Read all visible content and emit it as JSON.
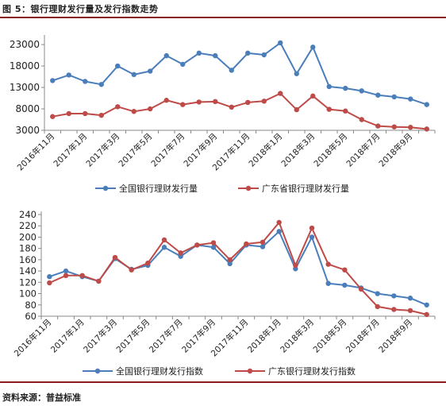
{
  "title": "图 5：银行理财发行量及发行指数走势",
  "source": "资料来源：普益标准",
  "colors": {
    "blue": "#4a7ebb",
    "red": "#be4b48",
    "axis": "#888888",
    "text": "#222222",
    "accent": "#8a1c1c"
  },
  "chart_data": [
    {
      "type": "line",
      "categories": [
        "2016年11月",
        "2016年12月",
        "2017年1月",
        "2017年2月",
        "2017年3月",
        "2017年4月",
        "2017年5月",
        "2017年6月",
        "2017年7月",
        "2017年8月",
        "2017年9月",
        "2017年10月",
        "2017年11月",
        "2017年12月",
        "2018年1月",
        "2018年2月",
        "2018年3月",
        "2018年4月",
        "2018年5月",
        "2018年6月",
        "2018年7月",
        "2018年8月",
        "2018年9月",
        "2018年10月"
      ],
      "tick_labels": [
        "2016年11月",
        "2017年1月",
        "2017年3月",
        "2017年5月",
        "2017年7月",
        "2017年9月",
        "2017年11月",
        "2018年1月",
        "2018年3月",
        "2018年5月",
        "2018年7月",
        "2018年9月"
      ],
      "yticks": [
        3000,
        8000,
        13000,
        18000,
        23000
      ],
      "ylim": [
        3000,
        24500
      ],
      "legend": "bottom",
      "series": [
        {
          "name": "全国银行理财发行量",
          "color": "#4a7ebb",
          "values": [
            14600,
            15900,
            14400,
            13700,
            18000,
            16000,
            16800,
            20400,
            18400,
            21000,
            20400,
            17000,
            21000,
            20600,
            23400,
            16200,
            22400,
            13200,
            12800,
            12200,
            11200,
            10800,
            10300,
            9000
          ]
        },
        {
          "name": "广东省银行理财发行量",
          "color": "#be4b48",
          "values": [
            6200,
            6900,
            6900,
            6500,
            8500,
            7400,
            8000,
            10000,
            9000,
            9600,
            9700,
            8400,
            9500,
            9800,
            11600,
            7800,
            11000,
            7900,
            7500,
            5500,
            4000,
            3800,
            3700,
            3300
          ]
        }
      ]
    },
    {
      "type": "line",
      "categories": [
        "2016年11月",
        "2016年12月",
        "2017年1月",
        "2017年2月",
        "2017年3月",
        "2017年4月",
        "2017年5月",
        "2017年6月",
        "2017年7月",
        "2017年8月",
        "2017年9月",
        "2017年10月",
        "2017年11月",
        "2017年12月",
        "2018年1月",
        "2018年2月",
        "2018年3月",
        "2018年4月",
        "2018年5月",
        "2018年6月",
        "2018年7月",
        "2018年8月",
        "2018年9月",
        "2018年10月"
      ],
      "tick_labels": [
        "2016年11月",
        "2017年1月",
        "2017年3月",
        "2017年5月",
        "2017年7月",
        "2017年9月",
        "2017年11月",
        "2018年1月",
        "2018年3月",
        "2018年5月",
        "2018年7月",
        "2018年9月"
      ],
      "yticks": [
        60,
        80,
        100,
        120,
        140,
        160,
        180,
        200,
        220,
        240
      ],
      "ylim": [
        60,
        240
      ],
      "legend": "bottom",
      "series": [
        {
          "name": "全国银行理财发行指数",
          "color": "#4a7ebb",
          "values": [
            130,
            140,
            130,
            122,
            162,
            143,
            150,
            182,
            166,
            186,
            182,
            153,
            186,
            183,
            210,
            144,
            200,
            118,
            115,
            110,
            100,
            96,
            92,
            80
          ]
        },
        {
          "name": "广东银行理财发行指数",
          "color": "#be4b48",
          "values": [
            119,
            132,
            132,
            122,
            164,
            142,
            154,
            195,
            172,
            186,
            190,
            160,
            188,
            191,
            226,
            150,
            216,
            152,
            142,
            108,
            77,
            72,
            70,
            63
          ]
        }
      ]
    }
  ]
}
